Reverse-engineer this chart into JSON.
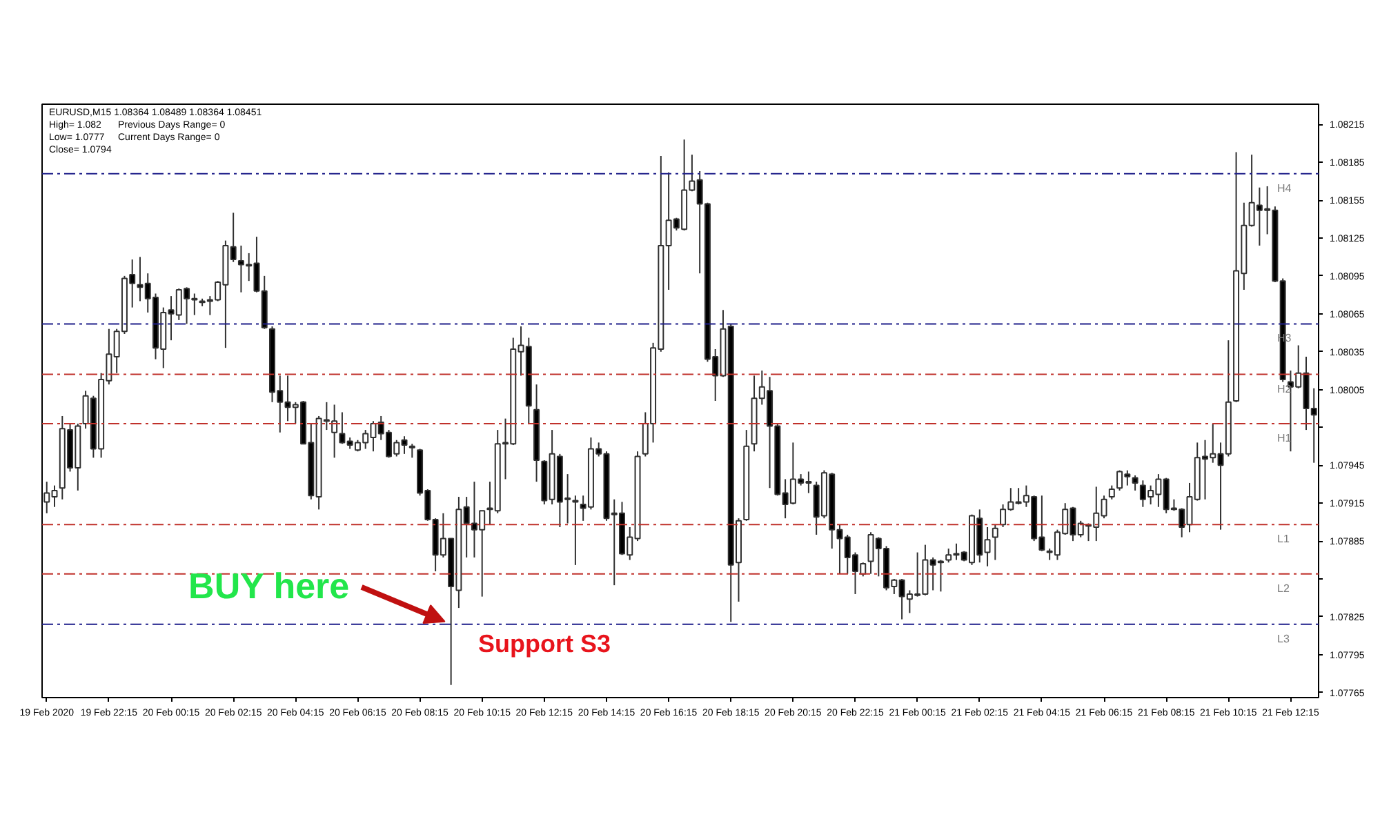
{
  "chart_data": {
    "type": "candlestick",
    "categories": [
      "19 Feb 2020",
      null,
      null,
      null,
      null,
      null,
      null,
      null,
      "19 Feb 22:15",
      null,
      null,
      null,
      null,
      null,
      null,
      null,
      "20 Feb 00:15",
      null,
      null,
      null,
      null,
      null,
      null,
      null,
      "20 Feb 02:15",
      null,
      null,
      null,
      null,
      null,
      null,
      null,
      "20 Feb 04:15",
      null,
      null,
      null,
      null,
      null,
      null,
      null,
      "20 Feb 06:15",
      null,
      null,
      null,
      null,
      null,
      null,
      null,
      "20 Feb 08:15",
      null,
      null,
      null,
      null,
      null,
      null,
      null,
      "20 Feb 10:15",
      null,
      null,
      null,
      null,
      null,
      null,
      null,
      "20 Feb 12:15",
      null,
      null,
      null,
      null,
      null,
      null,
      null,
      "20 Feb 14:15",
      null,
      null,
      null,
      null,
      null,
      null,
      null,
      "20 Feb 16:15",
      null,
      null,
      null,
      null,
      null,
      null,
      null,
      "20 Feb 18:15",
      null,
      null,
      null,
      null,
      null,
      null,
      null,
      "20 Feb 20:15",
      null,
      null,
      null,
      null,
      null,
      null,
      null,
      "20 Feb 22:15",
      null,
      null,
      null,
      null,
      null,
      null,
      null,
      "21 Feb 00:15",
      null,
      null,
      null,
      null,
      null,
      null,
      null,
      "21 Feb 02:15",
      null,
      null,
      null,
      null,
      null,
      null,
      null,
      "21 Feb 04:15",
      null,
      null,
      null,
      null,
      null,
      null,
      null,
      "21 Feb 06:15",
      null,
      null,
      null,
      null,
      null,
      null,
      null,
      "21 Feb 08:15",
      null,
      null,
      null,
      null,
      null,
      null,
      null,
      "21 Feb 10:15",
      null,
      null,
      null,
      null,
      null,
      null,
      null,
      "21 Feb 12:15",
      null,
      null,
      null
    ],
    "ohlc": [
      [
        1.07916,
        1.07932,
        1.07907,
        1.07923
      ],
      [
        1.0792,
        1.07929,
        1.07912,
        1.07925
      ],
      [
        1.07927,
        1.07984,
        1.07918,
        1.07974
      ],
      [
        1.07973,
        1.07978,
        1.0794,
        1.07943
      ],
      [
        1.07943,
        1.07978,
        1.07925,
        1.07976
      ],
      [
        1.07978,
        1.08004,
        1.07974,
        1.08
      ],
      [
        1.07998,
        1.08,
        1.07951,
        1.07958
      ],
      [
        1.07958,
        1.08018,
        1.07951,
        1.08013
      ],
      [
        1.08012,
        1.08053,
        1.08009,
        1.08033
      ],
      [
        1.08031,
        1.08053,
        1.08018,
        1.08051
      ],
      [
        1.08051,
        1.08095,
        1.08049,
        1.08093
      ],
      [
        1.08096,
        1.08108,
        1.0807,
        1.08089
      ],
      [
        1.08088,
        1.0811,
        1.08075,
        1.08086
      ],
      [
        1.08089,
        1.08097,
        1.08066,
        1.08077
      ],
      [
        1.08078,
        1.08081,
        1.08029,
        1.08038
      ],
      [
        1.08037,
        1.0807,
        1.08022,
        1.08066
      ],
      [
        1.08068,
        1.08079,
        1.08044,
        1.08065
      ],
      [
        1.08064,
        1.08085,
        1.0806,
        1.08084
      ],
      [
        1.08085,
        1.08086,
        1.08057,
        1.08077
      ],
      [
        1.08077,
        1.08081,
        1.08064,
        1.08076
      ],
      [
        1.08075,
        1.08077,
        1.08071,
        1.08074
      ],
      [
        1.08075,
        1.08079,
        1.08064,
        1.08076
      ],
      [
        1.08076,
        1.08091,
        1.08075,
        1.0809
      ],
      [
        1.08088,
        1.08123,
        1.08038,
        1.08119
      ],
      [
        1.08118,
        1.08145,
        1.08106,
        1.08108
      ],
      [
        1.08107,
        1.08119,
        1.08082,
        1.08104
      ],
      [
        1.08104,
        1.08113,
        1.08091,
        1.08103
      ],
      [
        1.08105,
        1.08126,
        1.08082,
        1.08083
      ],
      [
        1.08083,
        1.08095,
        1.08053,
        1.08054
      ],
      [
        1.08053,
        1.08055,
        1.07995,
        1.08003
      ],
      [
        1.08004,
        1.08016,
        1.07971,
        1.07995
      ],
      [
        1.07995,
        1.08016,
        1.0798,
        1.07991
      ],
      [
        1.07991,
        1.07995,
        1.07978,
        1.07993
      ],
      [
        1.07995,
        1.07996,
        1.07962,
        1.07962
      ],
      [
        1.07963,
        1.07978,
        1.07918,
        1.07921
      ],
      [
        1.0792,
        1.07984,
        1.0791,
        1.07982
      ],
      [
        1.0798,
        1.07995,
        1.07973,
        1.07981
      ],
      [
        1.07971,
        1.07993,
        1.07951,
        1.0798
      ],
      [
        1.0797,
        1.07987,
        1.07962,
        1.07963
      ],
      [
        1.07964,
        1.07967,
        1.07958,
        1.07961
      ],
      [
        1.07957,
        1.07965,
        1.07956,
        1.07963
      ],
      [
        1.07963,
        1.07973,
        1.07958,
        1.0797
      ],
      [
        1.07967,
        1.0798,
        1.07956,
        1.07978
      ],
      [
        1.07979,
        1.07984,
        1.07965,
        1.0797
      ],
      [
        1.07971,
        1.07973,
        1.07951,
        1.07952
      ],
      [
        1.07954,
        1.07965,
        1.07952,
        1.07963
      ],
      [
        1.07965,
        1.07968,
        1.07954,
        1.07961
      ],
      [
        1.0796,
        1.07962,
        1.07951,
        1.07959
      ],
      [
        1.07957,
        1.07958,
        1.07921,
        1.07923
      ],
      [
        1.07925,
        1.07926,
        1.07901,
        1.07902
      ],
      [
        1.07902,
        1.07903,
        1.07861,
        1.07874
      ],
      [
        1.07874,
        1.07907,
        1.07872,
        1.07887
      ],
      [
        1.07887,
        1.07887,
        1.07771,
        1.07849
      ],
      [
        1.07846,
        1.0792,
        1.07832,
        1.0791
      ],
      [
        1.07912,
        1.0792,
        1.07872,
        1.07899
      ],
      [
        1.07899,
        1.07932,
        1.07872,
        1.07894
      ],
      [
        1.07894,
        1.07909,
        1.07841,
        1.07909
      ],
      [
        1.0791,
        1.07932,
        1.07898,
        1.07911
      ],
      [
        1.07909,
        1.07973,
        1.07907,
        1.07962
      ],
      [
        1.07962,
        1.07982,
        1.07934,
        1.07963
      ],
      [
        1.07962,
        1.08046,
        1.07961,
        1.08037
      ],
      [
        1.08035,
        1.08055,
        1.08016,
        1.0804
      ],
      [
        1.08039,
        1.08046,
        1.07978,
        1.07992
      ],
      [
        1.07989,
        1.08009,
        1.07932,
        1.07949
      ],
      [
        1.07948,
        1.07949,
        1.07914,
        1.07917
      ],
      [
        1.07918,
        1.07973,
        1.07914,
        1.07954
      ],
      [
        1.07952,
        1.07954,
        1.07896,
        1.07916
      ],
      [
        1.07919,
        1.07938,
        1.07899,
        1.07918
      ],
      [
        1.07917,
        1.07921,
        1.07866,
        1.07916
      ],
      [
        1.07914,
        1.07921,
        1.07901,
        1.07911
      ],
      [
        1.07912,
        1.07967,
        1.0791,
        1.07958
      ],
      [
        1.07958,
        1.07963,
        1.07952,
        1.07954
      ],
      [
        1.07954,
        1.07956,
        1.07901,
        1.07903
      ],
      [
        1.07906,
        1.07918,
        1.0785,
        1.07907
      ],
      [
        1.07907,
        1.07916,
        1.07874,
        1.07875
      ],
      [
        1.07874,
        1.07896,
        1.0787,
        1.07888
      ],
      [
        1.07887,
        1.07956,
        1.07885,
        1.07952
      ],
      [
        1.07954,
        1.07987,
        1.07952,
        1.07978
      ],
      [
        1.07978,
        1.08042,
        1.07963,
        1.08038
      ],
      [
        1.08037,
        1.0819,
        1.08035,
        1.08119
      ],
      [
        1.08119,
        1.08177,
        1.08084,
        1.08139
      ],
      [
        1.0814,
        1.08141,
        1.08131,
        1.08133
      ],
      [
        1.08132,
        1.08203,
        1.08131,
        1.08163
      ],
      [
        1.08163,
        1.08191,
        1.08162,
        1.0817
      ],
      [
        1.08171,
        1.08178,
        1.08097,
        1.08152
      ],
      [
        1.08152,
        1.08153,
        1.08027,
        1.08029
      ],
      [
        1.08031,
        1.08037,
        1.07996,
        1.08016
      ],
      [
        1.08016,
        1.08068,
        1.08015,
        1.08053
      ],
      [
        1.08055,
        1.08057,
        1.07821,
        1.07866
      ],
      [
        1.07868,
        1.07903,
        1.07837,
        1.07901
      ],
      [
        1.07902,
        1.07973,
        1.07901,
        1.0796
      ],
      [
        1.07962,
        1.08016,
        1.07956,
        1.07998
      ],
      [
        1.07998,
        1.0802,
        1.07993,
        1.08007
      ],
      [
        1.08004,
        1.08015,
        1.07927,
        1.07976
      ],
      [
        1.07976,
        1.07978,
        1.07921,
        1.07922
      ],
      [
        1.07923,
        1.07934,
        1.07903,
        1.07914
      ],
      [
        1.07915,
        1.07963,
        1.07914,
        1.07934
      ],
      [
        1.07934,
        1.07938,
        1.07929,
        1.07931
      ],
      [
        1.07931,
        1.0794,
        1.07923,
        1.07932
      ],
      [
        1.07929,
        1.07932,
        1.0789,
        1.07904
      ],
      [
        1.07905,
        1.07941,
        1.07903,
        1.07939
      ],
      [
        1.07938,
        1.07939,
        1.07879,
        1.07894
      ],
      [
        1.07894,
        1.07898,
        1.07859,
        1.07887
      ],
      [
        1.07888,
        1.0789,
        1.07859,
        1.07872
      ],
      [
        1.07874,
        1.07876,
        1.07843,
        1.07861
      ],
      [
        1.07859,
        1.07868,
        1.07857,
        1.07867
      ],
      [
        1.07869,
        1.07892,
        1.07859,
        1.0789
      ],
      [
        1.07887,
        1.07888,
        1.07857,
        1.07879
      ],
      [
        1.07879,
        1.07881,
        1.07846,
        1.07848
      ],
      [
        1.07849,
        1.07855,
        1.07843,
        1.07854
      ],
      [
        1.07854,
        1.07855,
        1.07823,
        1.07841
      ],
      [
        1.07839,
        1.07846,
        1.07828,
        1.07843
      ],
      [
        1.07842,
        1.07876,
        1.07841,
        1.07843
      ],
      [
        1.07843,
        1.07882,
        1.07842,
        1.0787
      ],
      [
        1.0787,
        1.07872,
        1.07846,
        1.07866
      ],
      [
        1.07868,
        1.0787,
        1.07845,
        1.07869
      ],
      [
        1.0787,
        1.07879,
        1.07868,
        1.07874
      ],
      [
        1.07874,
        1.07883,
        1.0787,
        1.07875
      ],
      [
        1.07876,
        1.07877,
        1.07869,
        1.0787
      ],
      [
        1.07868,
        1.07906,
        1.07866,
        1.07905
      ],
      [
        1.07903,
        1.0791,
        1.07868,
        1.07874
      ],
      [
        1.07876,
        1.07896,
        1.07865,
        1.07886
      ],
      [
        1.07888,
        1.07898,
        1.0787,
        1.07895
      ],
      [
        1.07898,
        1.07914,
        1.07896,
        1.0791
      ],
      [
        1.0791,
        1.07927,
        1.07909,
        1.07916
      ],
      [
        1.07915,
        1.07927,
        1.07914,
        1.07916
      ],
      [
        1.07916,
        1.07929,
        1.07912,
        1.07921
      ],
      [
        1.0792,
        1.07921,
        1.07885,
        1.07887
      ],
      [
        1.07888,
        1.07921,
        1.07877,
        1.07878
      ],
      [
        1.07877,
        1.07879,
        1.0787,
        1.07876
      ],
      [
        1.07874,
        1.07894,
        1.0787,
        1.07892
      ],
      [
        1.07891,
        1.07915,
        1.0789,
        1.0791
      ],
      [
        1.07911,
        1.07912,
        1.07885,
        1.0789
      ],
      [
        1.0789,
        1.07901,
        1.07888,
        1.07899
      ],
      [
        1.07897,
        1.07899,
        1.07885,
        1.07898
      ],
      [
        1.07896,
        1.07928,
        1.07885,
        1.07907
      ],
      [
        1.07905,
        1.07921,
        1.07903,
        1.07918
      ],
      [
        1.0792,
        1.07929,
        1.07918,
        1.07926
      ],
      [
        1.07927,
        1.07941,
        1.07925,
        1.0794
      ],
      [
        1.07938,
        1.07941,
        1.07929,
        1.07936
      ],
      [
        1.07935,
        1.07937,
        1.07925,
        1.07931
      ],
      [
        1.07929,
        1.07933,
        1.07912,
        1.07918
      ],
      [
        1.0792,
        1.07929,
        1.07914,
        1.07925
      ],
      [
        1.07922,
        1.07938,
        1.07912,
        1.07934
      ],
      [
        1.07934,
        1.07935,
        1.07907,
        1.0791
      ],
      [
        1.07911,
        1.07918,
        1.07909,
        1.0791
      ],
      [
        1.0791,
        1.07911,
        1.07888,
        1.07896
      ],
      [
        1.07898,
        1.07931,
        1.07892,
        1.0792
      ],
      [
        1.07918,
        1.07963,
        1.07917,
        1.07951
      ],
      [
        1.07952,
        1.07965,
        1.07918,
        1.0795
      ],
      [
        1.07951,
        1.07978,
        1.07947,
        1.07954
      ],
      [
        1.07954,
        1.07963,
        1.07894,
        1.07945
      ],
      [
        1.07954,
        1.08044,
        1.07952,
        1.07995
      ],
      [
        1.07996,
        1.08193,
        1.07995,
        1.08099
      ],
      [
        1.08097,
        1.08153,
        1.08084,
        1.08135
      ],
      [
        1.08135,
        1.08191,
        1.08134,
        1.08153
      ],
      [
        1.08151,
        1.08165,
        1.08119,
        1.08147
      ],
      [
        1.08148,
        1.08166,
        1.08128,
        1.08147
      ],
      [
        1.08147,
        1.0815,
        1.0809,
        1.08091
      ],
      [
        1.08091,
        1.08093,
        1.08011,
        1.08013
      ],
      [
        1.08011,
        1.0802,
        1.07956,
        1.08007
      ],
      [
        1.08007,
        1.0804,
        1.08006,
        1.08018
      ],
      [
        1.08018,
        1.08031,
        1.07973,
        1.0799
      ],
      [
        1.0799,
        1.08006,
        1.07947,
        1.07985
      ]
    ],
    "ylim": [
      1.07761,
      1.08231
    ],
    "yticks": [
      1.07765,
      1.07795,
      1.07825,
      {
        "value": 1.07855,
        "label": null
      },
      1.07885,
      1.07915,
      1.07945,
      {
        "value": 1.07975,
        "label": null
      },
      1.08005,
      1.08035,
      1.08065,
      1.08095,
      1.08125,
      1.08155,
      1.08185,
      1.08215
    ],
    "ref_lines": [
      {
        "axis": "y",
        "value": 1.08176,
        "label": "H4",
        "color": "#1f1f8a",
        "line_style": "dashed"
      },
      {
        "axis": "y",
        "value": 1.08057,
        "label": "H3",
        "color": "#1f1f8a",
        "line_style": "dashed"
      },
      {
        "axis": "y",
        "value": 1.08017,
        "label": "H2",
        "color": "#c0312b",
        "line_style": "dashed"
      },
      {
        "axis": "y",
        "value": 1.07978,
        "label": "H1",
        "color": "#c0312b",
        "line_style": "dashed"
      },
      {
        "axis": "y",
        "value": 1.07898,
        "label": "L1",
        "color": "#c0312b",
        "line_style": "dashed"
      },
      {
        "axis": "y",
        "value": 1.07859,
        "label": "L2",
        "color": "#c0312b",
        "line_style": "dashed"
      },
      {
        "axis": "y",
        "value": 1.07819,
        "label": "L3",
        "color": "#1f1f8a",
        "line_style": "dashed"
      }
    ],
    "annotations": [
      "EURUSD,M15  1.08364 1.08489 1.08364 1.08451",
      "High= 1.082",
      "Previous Days Range= 0",
      "Low= 1.0777",
      "Current Days Range= 0",
      "Close= 1.0794",
      {
        "text": "BUY here",
        "y": 1.07819
      },
      {
        "text": "Support S3",
        "y": 1.07819
      }
    ]
  }
}
